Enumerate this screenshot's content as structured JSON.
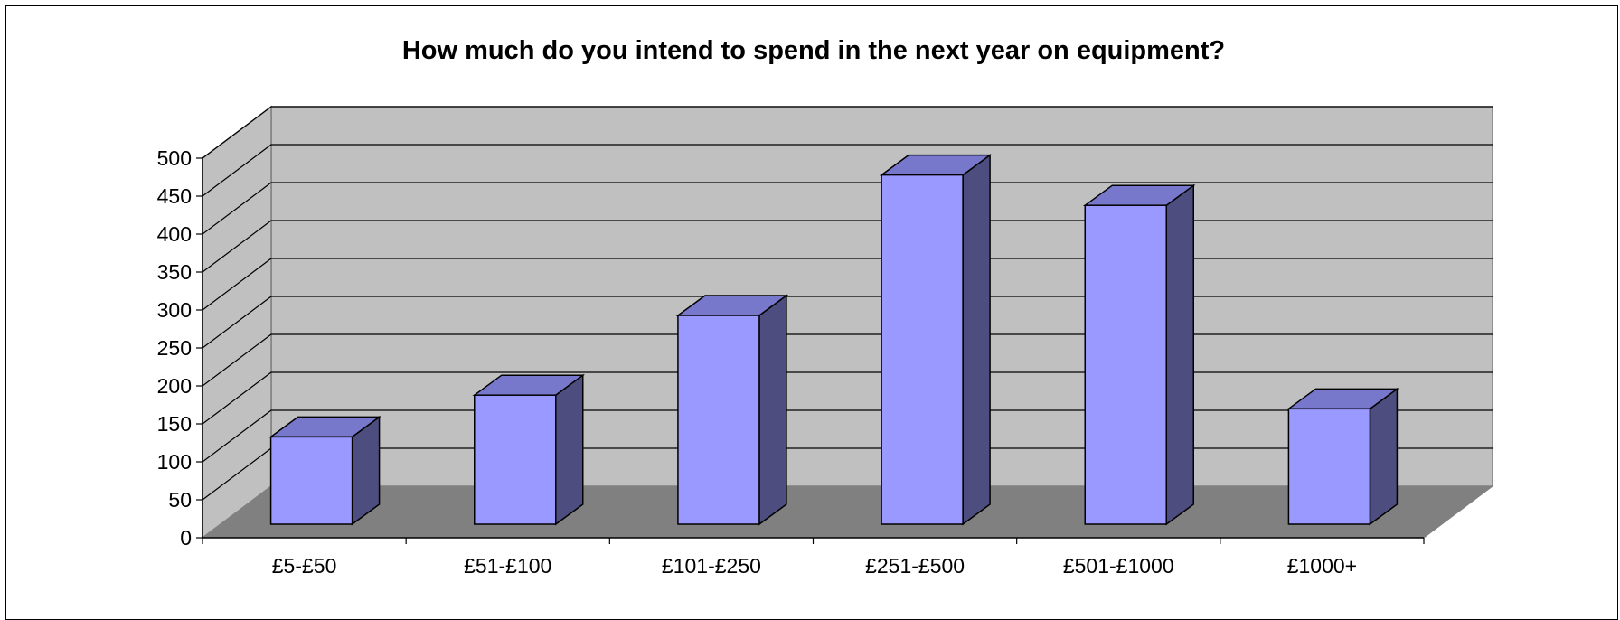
{
  "chart_data": {
    "type": "bar",
    "title": "How much do you intend to spend in the next year on equipment?",
    "categories": [
      "£5-£50",
      "£51-£100",
      "£101-£250",
      "£251-£500",
      "£501-£1000",
      "£1000+"
    ],
    "values": [
      115,
      170,
      275,
      460,
      420,
      152
    ],
    "ylim": [
      0,
      500
    ],
    "yticks": [
      0,
      50,
      100,
      150,
      200,
      250,
      300,
      350,
      400,
      450,
      500
    ],
    "grid": true,
    "legend": "none",
    "colors": {
      "bar_front": "#9999ff",
      "bar_top": "#7777cc",
      "bar_side": "#4d4d80",
      "back_wall": "#c0c0c0",
      "floor": "#808080",
      "side_wall": "#c0c0c0"
    }
  }
}
